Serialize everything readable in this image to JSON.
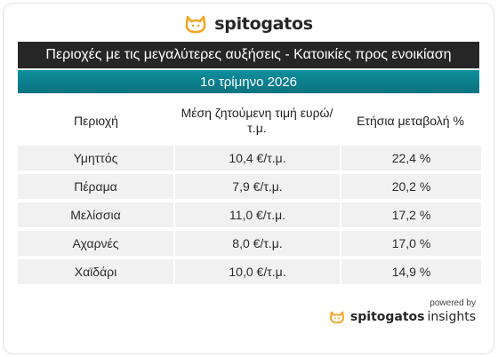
{
  "brand": {
    "name": "spitogatos",
    "accent": "#f5a623"
  },
  "title": "Περιοχές με τις μεγαλύτερες αυξήσεις - Κατοικίες προς ενοικίαση",
  "subtitle": "1ο τρίμηνο 2026",
  "table": {
    "headers": [
      "Περιοχή",
      "Μέση ζητούμενη τιμή ευρώ/τ.μ.",
      "Ετήσια μεταβολή %"
    ],
    "rows": [
      [
        "Υμηττός",
        "10,4 €/τ.μ.",
        "22,4 %"
      ],
      [
        "Πέραμα",
        "7,9 €/τ.μ.",
        "20,2 %"
      ],
      [
        "Μελίσσια",
        "11,0 €/τ.μ.",
        "17,2 %"
      ],
      [
        "Αχαρνές",
        "8,0 €/τ.μ.",
        "17,0 %"
      ],
      [
        "Χαϊδάρι",
        "10,0 €/τ.μ.",
        "14,9 %"
      ]
    ]
  },
  "footer": {
    "powered_by": "powered by",
    "brand_name": "spitogatos",
    "brand_suffix": "insights"
  }
}
